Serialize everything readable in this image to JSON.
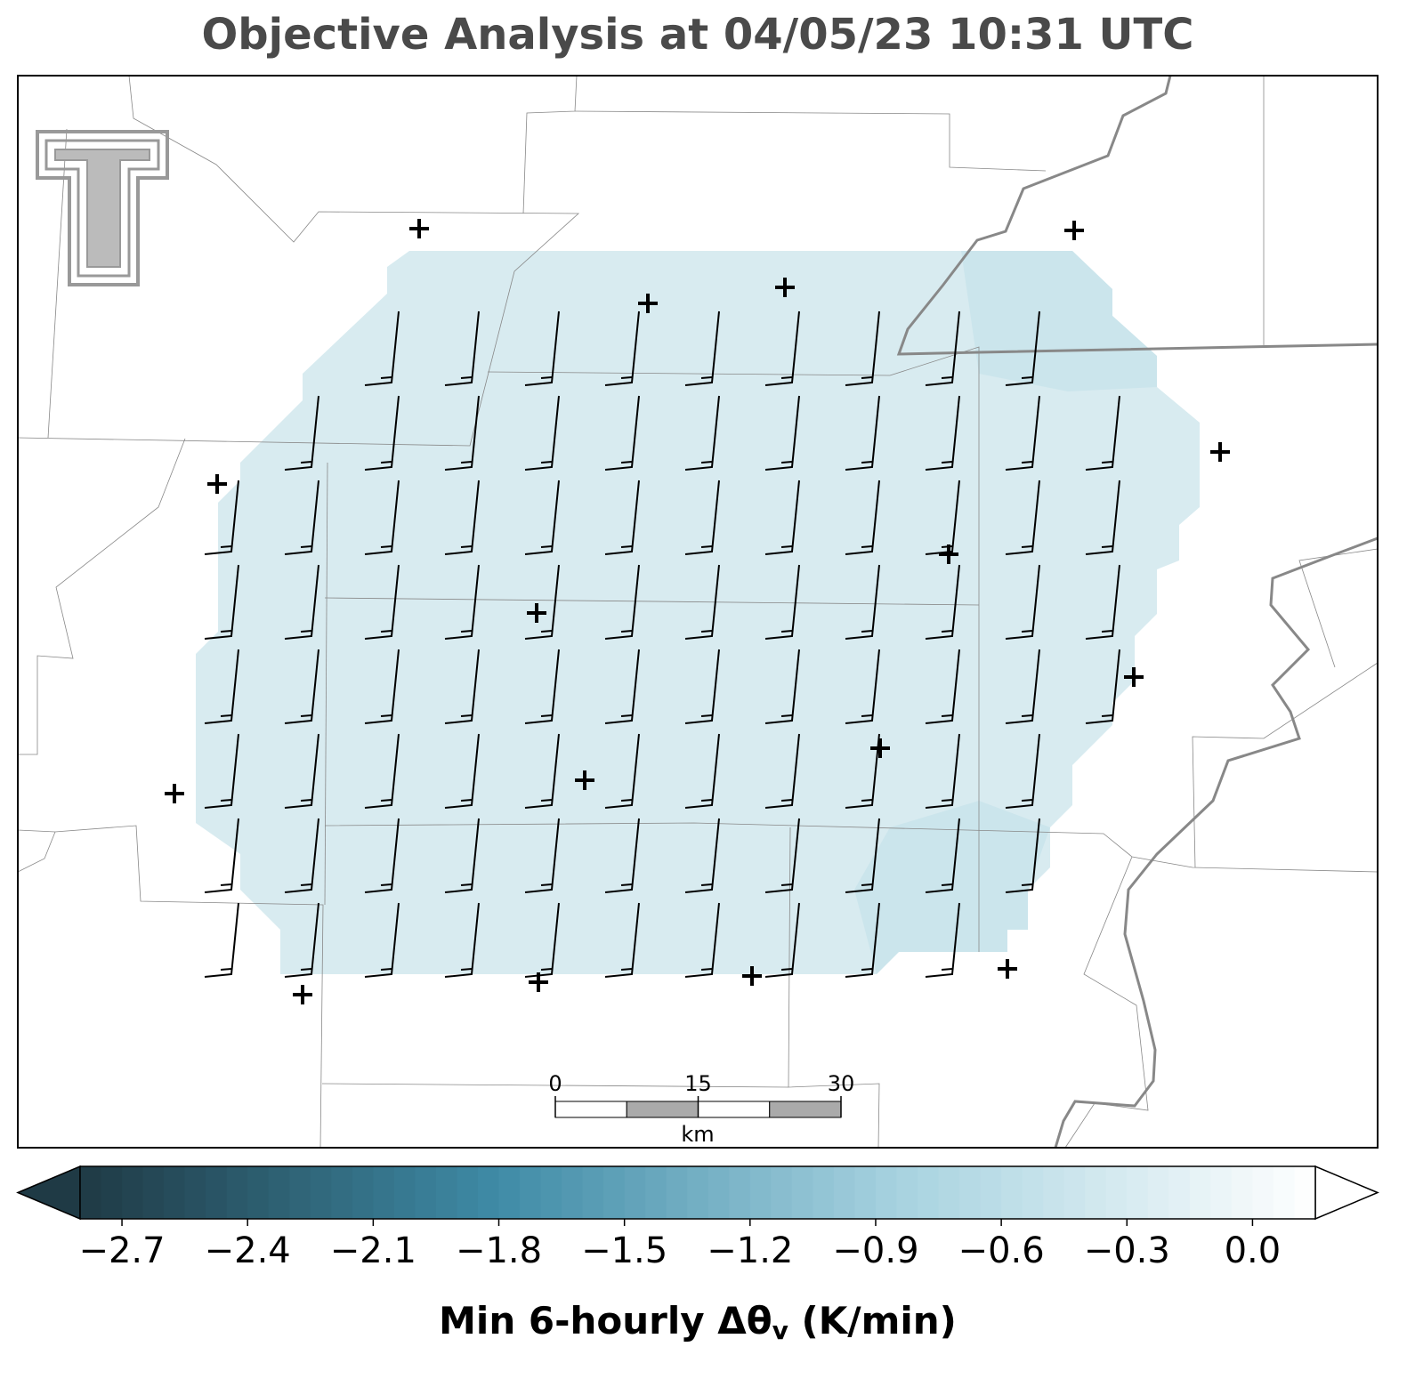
{
  "header": {
    "title": "Objective Analysis at 04/05/23 10:31 UTC"
  },
  "scale_bar": {
    "ticks": [
      0,
      15,
      30
    ],
    "unit": "km"
  },
  "colorbar": {
    "clim": [
      -2.8,
      0.15
    ],
    "ticks": [
      {
        "value": -2.7,
        "label": "−2.7"
      },
      {
        "value": -2.4,
        "label": "−2.4"
      },
      {
        "value": -2.1,
        "label": "−2.1"
      },
      {
        "value": -1.8,
        "label": "−1.8"
      },
      {
        "value": -1.5,
        "label": "−1.5"
      },
      {
        "value": -1.2,
        "label": "−1.2"
      },
      {
        "value": -0.9,
        "label": "−0.9"
      },
      {
        "value": -0.6,
        "label": "−0.6"
      },
      {
        "value": -0.3,
        "label": "−0.3"
      },
      {
        "value": 0.0,
        "label": "0.0"
      }
    ],
    "colormap": [
      "#1f3a45",
      "#3e8aa5",
      "#a8d3e0",
      "#ffffff"
    ],
    "label": [
      "Min 6-hourly Δθ",
      "v",
      " (K/min)"
    ]
  }
}
